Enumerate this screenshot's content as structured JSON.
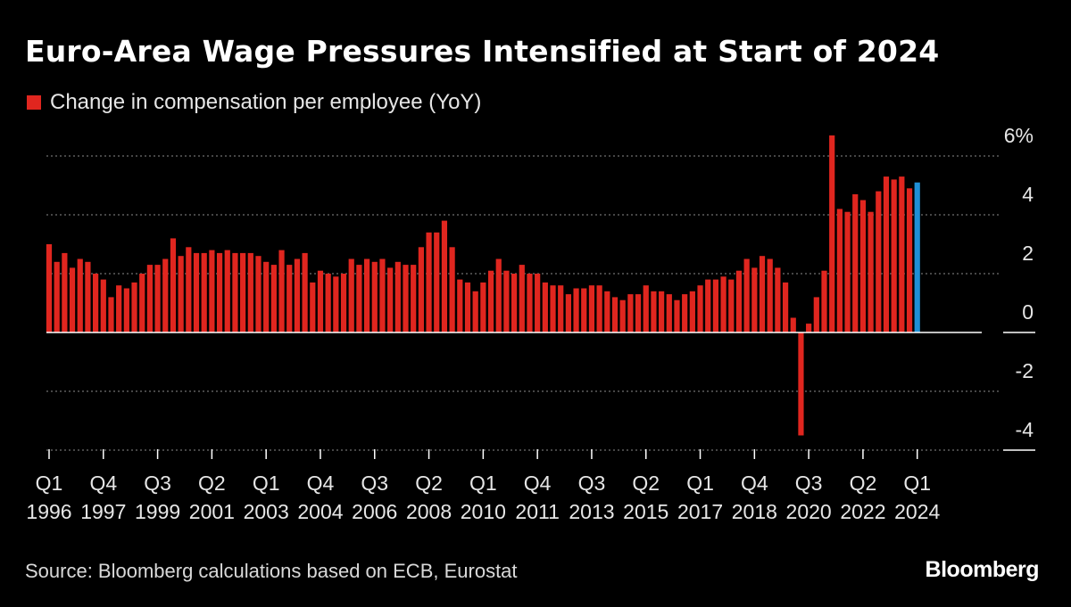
{
  "title": "Euro-Area Wage Pressures Intensified at Start of 2024",
  "legend": {
    "label": "Change in compensation per employee (YoY)",
    "color": "#e0261f"
  },
  "source": "Source: Bloomberg calculations based on ECB, Eurostat",
  "brand": "Bloomberg",
  "chart_data": {
    "type": "bar",
    "title": "Euro-Area Wage Pressures Intensified at Start of 2024",
    "series": [
      {
        "name": "Change in compensation per employee (YoY)",
        "color": "#e0261f",
        "highlight_color": "#1f8fd6",
        "highlight_last": true,
        "start_quarter": "1996Q1",
        "values": [
          3.0,
          2.4,
          2.7,
          2.2,
          2.5,
          2.4,
          2.0,
          1.8,
          1.2,
          1.6,
          1.5,
          1.7,
          2.0,
          2.3,
          2.3,
          2.5,
          3.2,
          2.6,
          2.9,
          2.7,
          2.7,
          2.8,
          2.7,
          2.8,
          2.7,
          2.7,
          2.7,
          2.6,
          2.4,
          2.3,
          2.8,
          2.3,
          2.5,
          2.7,
          1.7,
          2.1,
          2.0,
          1.9,
          2.0,
          2.5,
          2.3,
          2.5,
          2.4,
          2.5,
          2.2,
          2.4,
          2.3,
          2.3,
          2.9,
          3.4,
          3.4,
          3.8,
          2.9,
          1.8,
          1.7,
          1.4,
          1.7,
          2.1,
          2.5,
          2.1,
          2.0,
          2.3,
          2.0,
          2.0,
          1.7,
          1.6,
          1.6,
          1.3,
          1.5,
          1.5,
          1.6,
          1.6,
          1.4,
          1.2,
          1.1,
          1.3,
          1.3,
          1.6,
          1.4,
          1.4,
          1.3,
          1.1,
          1.3,
          1.4,
          1.6,
          1.8,
          1.8,
          1.9,
          1.8,
          2.1,
          2.5,
          2.2,
          2.6,
          2.5,
          2.2,
          1.7,
          0.5,
          -3.5,
          0.3,
          1.2,
          2.1,
          6.7,
          4.2,
          4.1,
          4.7,
          4.5,
          4.1,
          4.8,
          5.3,
          5.2,
          5.3,
          4.9,
          5.1
        ]
      }
    ],
    "x_ticks": [
      {
        "quarter": "Q1",
        "year": "1996",
        "index": 0
      },
      {
        "quarter": "Q4",
        "year": "1997",
        "index": 7
      },
      {
        "quarter": "Q3",
        "year": "1999",
        "index": 14
      },
      {
        "quarter": "Q2",
        "year": "2001",
        "index": 21
      },
      {
        "quarter": "Q1",
        "year": "2003",
        "index": 28
      },
      {
        "quarter": "Q4",
        "year": "2004",
        "index": 35
      },
      {
        "quarter": "Q3",
        "year": "2006",
        "index": 42
      },
      {
        "quarter": "Q2",
        "year": "2008",
        "index": 49
      },
      {
        "quarter": "Q1",
        "year": "2010",
        "index": 56
      },
      {
        "quarter": "Q4",
        "year": "2011",
        "index": 63
      },
      {
        "quarter": "Q3",
        "year": "2013",
        "index": 70
      },
      {
        "quarter": "Q2",
        "year": "2015",
        "index": 77
      },
      {
        "quarter": "Q1",
        "year": "2017",
        "index": 84
      },
      {
        "quarter": "Q4",
        "year": "2018",
        "index": 91
      },
      {
        "quarter": "Q3",
        "year": "2020",
        "index": 98
      },
      {
        "quarter": "Q2",
        "year": "2022",
        "index": 105
      },
      {
        "quarter": "Q1",
        "year": "2024",
        "index": 112
      }
    ],
    "y_ticks": [
      {
        "value": 6,
        "label": "6%"
      },
      {
        "value": 4,
        "label": "4"
      },
      {
        "value": 2,
        "label": "2"
      },
      {
        "value": 0,
        "label": "0"
      },
      {
        "value": -2,
        "label": "-2"
      },
      {
        "value": -4,
        "label": "-4"
      }
    ],
    "ylim": [
      -4,
      6
    ],
    "grid": true,
    "legend_position": "top-left"
  }
}
